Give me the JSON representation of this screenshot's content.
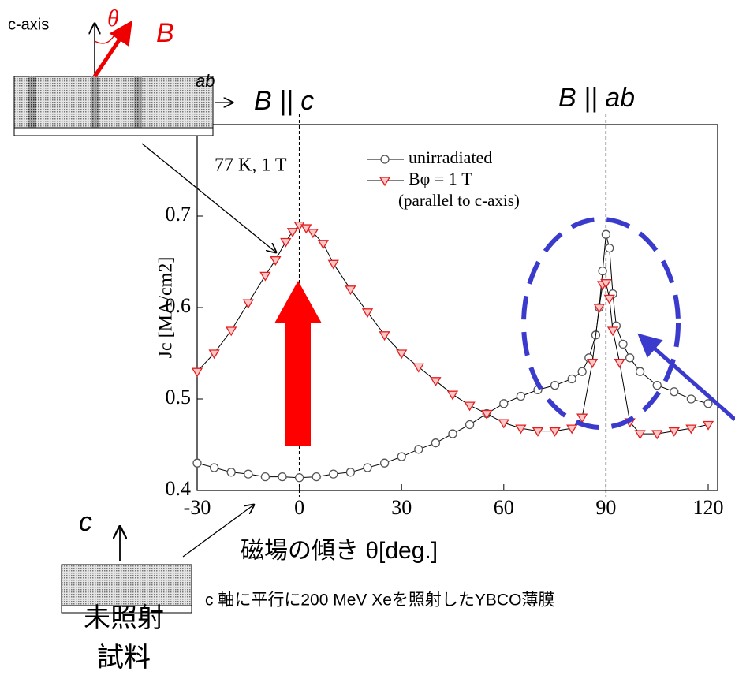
{
  "chart_data": {
    "type": "line",
    "xlabel": "磁場の傾き θ[deg.]",
    "ylabel": "Jc [MA/cm2]",
    "condition": "77 K, 1 T",
    "legend_note": "(parallel to c-axis)",
    "xlim": [
      -30,
      120
    ],
    "ylim": [
      0.4,
      0.8
    ],
    "xticks": [
      -30,
      0,
      30,
      60,
      90,
      120
    ],
    "yticks": [
      0.4,
      0.5,
      0.6,
      0.7
    ],
    "series": [
      {
        "name": "unirradiated",
        "color": "#555555",
        "marker": "circle",
        "x": [
          -30,
          -25,
          -20,
          -15,
          -10,
          -5,
          0,
          5,
          10,
          15,
          20,
          25,
          30,
          35,
          40,
          45,
          50,
          55,
          60,
          65,
          70,
          75,
          80,
          83,
          85,
          87,
          88,
          89,
          90,
          91,
          92,
          93,
          95,
          97,
          100,
          105,
          110,
          115,
          120
        ],
        "values": [
          0.43,
          0.425,
          0.42,
          0.418,
          0.415,
          0.415,
          0.414,
          0.415,
          0.418,
          0.42,
          0.425,
          0.43,
          0.437,
          0.445,
          0.452,
          0.462,
          0.472,
          0.484,
          0.495,
          0.503,
          0.51,
          0.515,
          0.522,
          0.53,
          0.545,
          0.57,
          0.6,
          0.64,
          0.68,
          0.665,
          0.615,
          0.58,
          0.56,
          0.545,
          0.53,
          0.515,
          0.508,
          0.5,
          0.495
        ]
      },
      {
        "name": "Bφ = 1 T",
        "color": "#e02020",
        "marker": "triangle-down",
        "x": [
          -30,
          -25,
          -20,
          -15,
          -10,
          -7,
          -4,
          -2,
          0,
          2,
          4,
          7,
          10,
          15,
          20,
          25,
          30,
          35,
          40,
          45,
          50,
          55,
          60,
          65,
          70,
          75,
          80,
          83,
          86,
          88,
          89,
          90,
          91,
          92,
          94,
          97,
          100,
          105,
          110,
          115,
          120
        ],
        "values": [
          0.53,
          0.55,
          0.575,
          0.605,
          0.635,
          0.652,
          0.672,
          0.683,
          0.69,
          0.687,
          0.682,
          0.67,
          0.648,
          0.62,
          0.595,
          0.57,
          0.55,
          0.535,
          0.52,
          0.505,
          0.493,
          0.484,
          0.474,
          0.468,
          0.465,
          0.465,
          0.468,
          0.48,
          0.54,
          0.6,
          0.625,
          0.627,
          0.61,
          0.575,
          0.54,
          0.475,
          0.462,
          0.462,
          0.465,
          0.468,
          0.472
        ]
      }
    ]
  },
  "annotations": {
    "b_parallel_c": "B || c",
    "b_parallel_ab": "B || ab",
    "c_axis": "c-axis",
    "theta": "θ",
    "b": "B",
    "ab": "ab",
    "c": "c",
    "sample_line1": "未照射",
    "sample_line2": "試料",
    "caption": "c 軸に平行に200 MeV Xeを照射したYBCO薄膜"
  }
}
